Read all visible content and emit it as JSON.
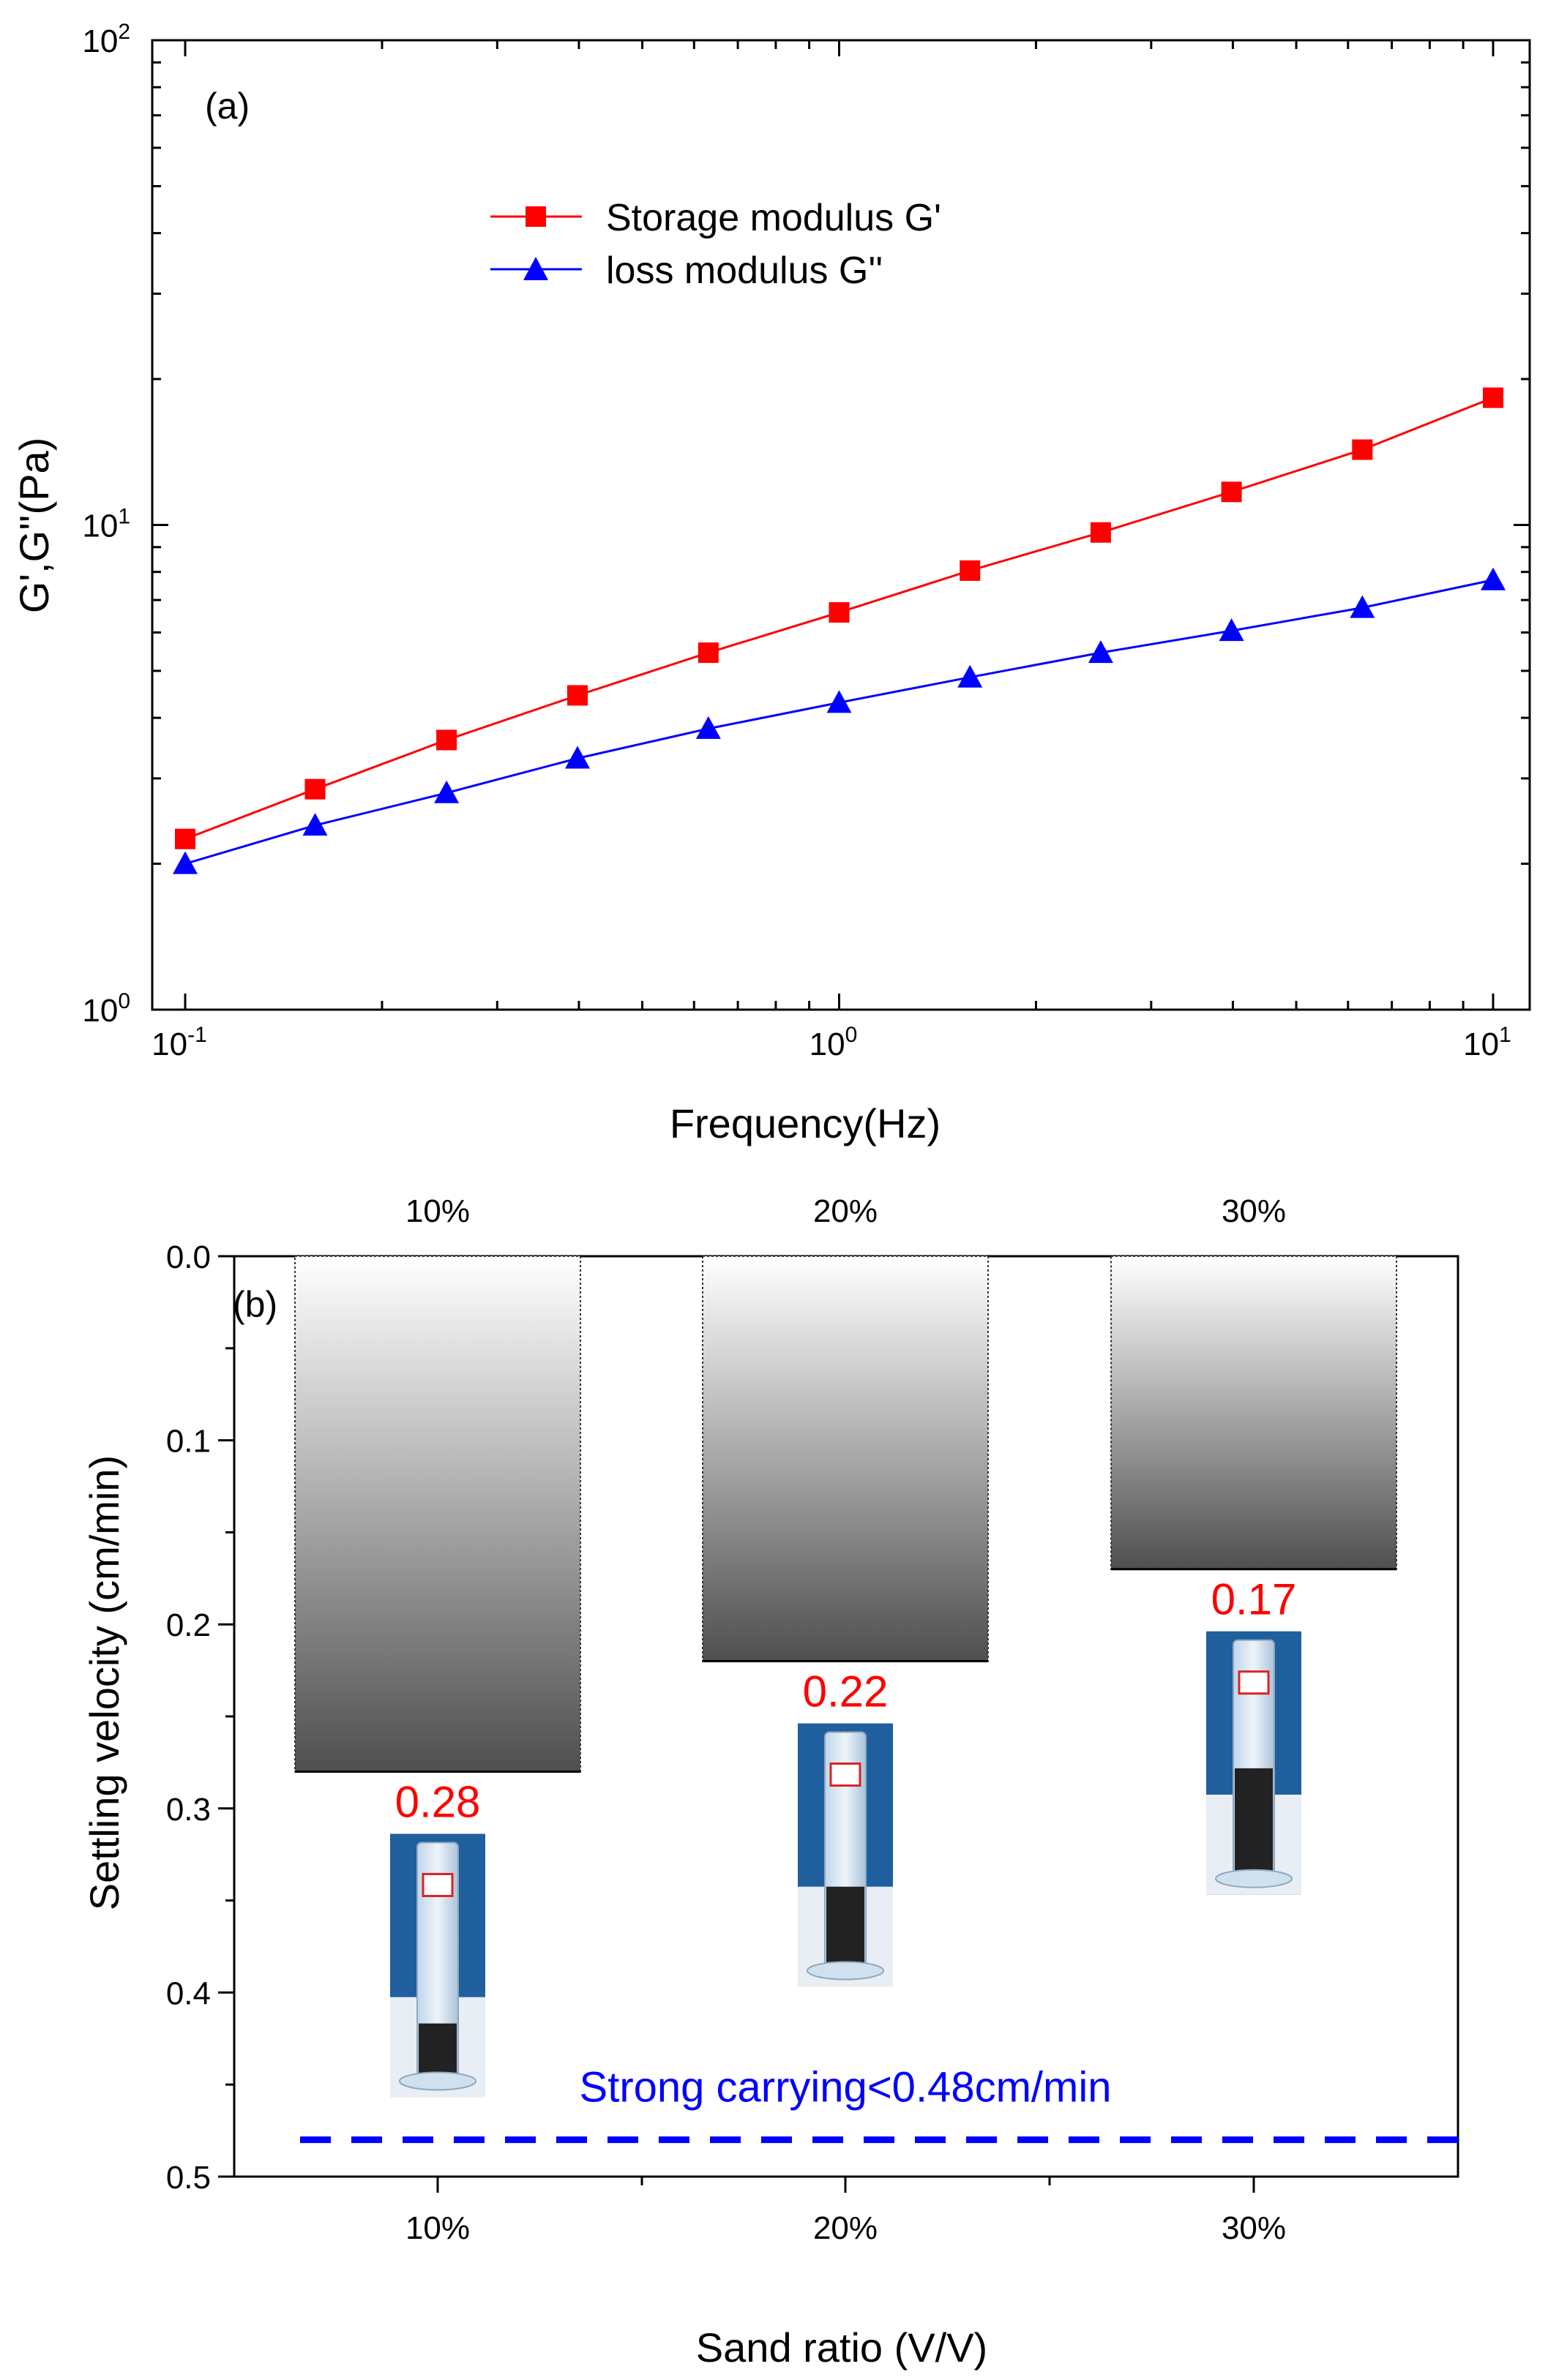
{
  "chart_data": [
    {
      "type": "line",
      "panel_label": "(a)",
      "xlabel": "Frequency(Hz)",
      "ylabel": "G',G''(Pa)",
      "xscale": "log",
      "yscale": "log",
      "xlim": [
        0.1,
        10
      ],
      "ylim": [
        1,
        100
      ],
      "x_ticks": [
        {
          "base": "10",
          "exp": "-1"
        },
        {
          "base": "10",
          "exp": "0"
        },
        {
          "base": "10",
          "exp": "1"
        }
      ],
      "y_ticks": [
        {
          "base": "10",
          "exp": "0"
        },
        {
          "base": "10",
          "exp": "1"
        },
        {
          "base": "10",
          "exp": "2"
        }
      ],
      "legend_position": "top-center",
      "x": [
        0.1,
        0.158,
        0.251,
        0.398,
        0.631,
        1.0,
        1.585,
        2.512,
        3.981,
        6.31,
        10.0
      ],
      "series": [
        {
          "name": "Storage modulus G'",
          "color": "#ff0000",
          "marker": "square",
          "values": [
            2.25,
            2.85,
            3.6,
            4.45,
            5.45,
            6.6,
            8.05,
            9.65,
            11.7,
            14.3,
            18.3
          ]
        },
        {
          "name": "loss modulus G''",
          "color": "#0000ff",
          "marker": "triangle",
          "values": [
            2.0,
            2.4,
            2.8,
            3.3,
            3.8,
            4.3,
            4.85,
            5.45,
            6.05,
            6.75,
            7.7
          ]
        }
      ]
    },
    {
      "type": "bar",
      "panel_label": "(b)",
      "xlabel": "Sand ratio (V/V)",
      "ylabel": "Settling velocity (cm/min)",
      "y_inverted": true,
      "ylim": [
        0.0,
        0.5
      ],
      "y_ticks": [
        "0.0",
        "0.1",
        "0.2",
        "0.3",
        "0.4",
        "0.5"
      ],
      "categories": [
        "10%",
        "20%",
        "30%"
      ],
      "top_labels": [
        "10%",
        "20%",
        "30%"
      ],
      "values": [
        0.28,
        0.22,
        0.17
      ],
      "value_labels": [
        "0.28",
        "0.22",
        "0.17"
      ],
      "value_label_color": "#ff0000",
      "threshold": {
        "value": 0.48,
        "label": "Strong carrying<0.48cm/min",
        "color": "#0000ff",
        "style": "dashed"
      }
    }
  ]
}
